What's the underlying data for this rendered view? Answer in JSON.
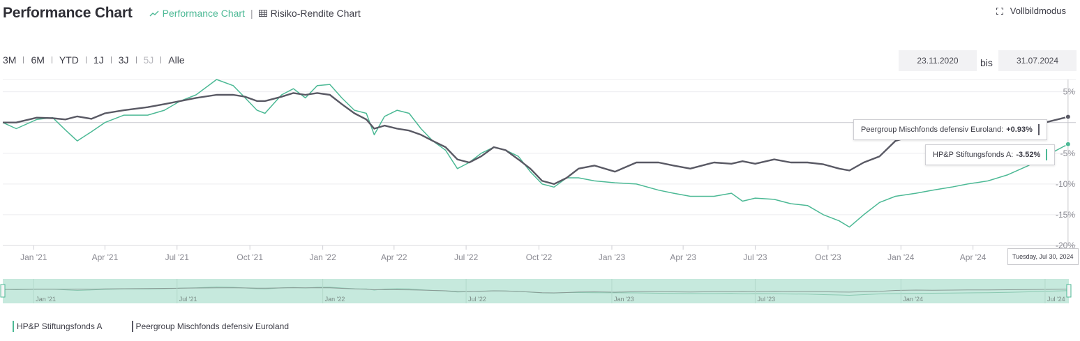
{
  "header": {
    "title": "Performance Chart",
    "tabs": [
      {
        "label": "Performance Chart",
        "icon": "line-chart-icon",
        "active": true
      },
      {
        "label": "Risiko-Rendite Chart",
        "icon": "table-icon",
        "active": false
      }
    ],
    "tab_separator": "|",
    "fullscreen_label": "Vollbildmodus"
  },
  "ranges": [
    {
      "label": "3M",
      "disabled": false
    },
    {
      "label": "6M",
      "disabled": false
    },
    {
      "label": "YTD",
      "disabled": false
    },
    {
      "label": "1J",
      "disabled": false
    },
    {
      "label": "3J",
      "disabled": false
    },
    {
      "label": "5J",
      "disabled": true
    },
    {
      "label": "Alle",
      "disabled": false
    }
  ],
  "date_range": {
    "from": "23.11.2020",
    "separator": "bis",
    "to": "31.07.2024"
  },
  "tooltips": {
    "peer_label": "Peergroup Mischfonds defensiv Euroland:",
    "peer_value": "+0.93%",
    "fund_label": "HP&P Stiftungsfonds A:",
    "fund_value": "-3.52%",
    "date": "Tuesday, Jul 30, 2024"
  },
  "legend": [
    {
      "name": "HP&P Stiftungsfonds A",
      "color": "#4cb995"
    },
    {
      "name": "Peergroup Mischfonds defensiv Euroland",
      "color": "#595964"
    }
  ],
  "colors": {
    "fund": "#4cb995",
    "peer": "#595964",
    "navigator_bg": "#c6e9dd",
    "accent": "#4cb995"
  },
  "chart_data": {
    "type": "line",
    "x_type": "date",
    "xlim": [
      "2020-11-23",
      "2024-07-31"
    ],
    "ylim": [
      -20,
      7
    ],
    "y_ticks": [
      5,
      0,
      -5,
      -10,
      -15,
      -20
    ],
    "y_tick_labels": [
      "5%",
      "",
      "-5%",
      "-10%",
      "-15%",
      "-20%"
    ],
    "x_ticks": [
      "2021-01-01",
      "2021-04-01",
      "2021-07-01",
      "2021-10-01",
      "2022-01-01",
      "2022-04-01",
      "2022-07-01",
      "2022-10-01",
      "2023-01-01",
      "2023-04-01",
      "2023-07-01",
      "2023-10-01",
      "2024-01-01",
      "2024-04-01"
    ],
    "x_tick_labels": [
      "Jan '21",
      "Apr '21",
      "Jul '21",
      "Oct '21",
      "Jan '22",
      "Apr '22",
      "Jul '22",
      "Oct '22",
      "Jan '23",
      "Apr '23",
      "Jul '23",
      "Oct '23",
      "Jan '24",
      "Apr '24"
    ],
    "navigator_ticks": [
      "2021-01-01",
      "2021-07-01",
      "2022-01-01",
      "2022-07-01",
      "2023-01-01",
      "2023-07-01",
      "2024-01-01",
      "2024-07-01"
    ],
    "navigator_tick_labels": [
      "Jan '21",
      "Jul '21",
      "Jan '22",
      "Jul '22",
      "Jan '23",
      "Jul '23",
      "Jan '24",
      "Jul '24"
    ],
    "grid": true,
    "legend_position": "bottom-left",
    "series": [
      {
        "name": "HP&P Stiftungsfonds A",
        "color": "#4cb995",
        "points": [
          [
            "2020-11-23",
            0.0
          ],
          [
            "2020-12-10",
            -1.0
          ],
          [
            "2021-01-05",
            0.5
          ],
          [
            "2021-01-25",
            0.8
          ],
          [
            "2021-02-10",
            -1.2
          ],
          [
            "2021-02-25",
            -3.0
          ],
          [
            "2021-03-15",
            -1.5
          ],
          [
            "2021-04-01",
            0.0
          ],
          [
            "2021-04-25",
            1.2
          ],
          [
            "2021-05-25",
            1.2
          ],
          [
            "2021-06-15",
            2.0
          ],
          [
            "2021-07-05",
            3.5
          ],
          [
            "2021-07-25",
            4.5
          ],
          [
            "2021-08-20",
            7.0
          ],
          [
            "2021-09-10",
            6.0
          ],
          [
            "2021-09-25",
            4.0
          ],
          [
            "2021-10-10",
            2.0
          ],
          [
            "2021-10-20",
            1.5
          ],
          [
            "2021-11-10",
            4.5
          ],
          [
            "2021-11-25",
            5.5
          ],
          [
            "2021-12-10",
            4.0
          ],
          [
            "2021-12-25",
            6.0
          ],
          [
            "2022-01-10",
            6.2
          ],
          [
            "2022-01-25",
            4.0
          ],
          [
            "2022-02-10",
            2.0
          ],
          [
            "2022-02-25",
            1.5
          ],
          [
            "2022-03-07",
            -2.0
          ],
          [
            "2022-03-20",
            1.0
          ],
          [
            "2022-04-05",
            2.0
          ],
          [
            "2022-04-20",
            1.5
          ],
          [
            "2022-05-05",
            -1.0
          ],
          [
            "2022-05-20",
            -3.0
          ],
          [
            "2022-06-05",
            -4.5
          ],
          [
            "2022-06-20",
            -7.5
          ],
          [
            "2022-07-05",
            -6.5
          ],
          [
            "2022-07-20",
            -5.0
          ],
          [
            "2022-08-05",
            -4.0
          ],
          [
            "2022-08-20",
            -4.5
          ],
          [
            "2022-09-05",
            -5.5
          ],
          [
            "2022-09-20",
            -8.0
          ],
          [
            "2022-10-05",
            -10.0
          ],
          [
            "2022-10-20",
            -10.5
          ],
          [
            "2022-11-05",
            -9.0
          ],
          [
            "2022-11-20",
            -9.0
          ],
          [
            "2022-12-10",
            -9.5
          ],
          [
            "2023-01-05",
            -9.8
          ],
          [
            "2023-02-01",
            -10.0
          ],
          [
            "2023-03-01",
            -11.0
          ],
          [
            "2023-03-20",
            -11.5
          ],
          [
            "2023-04-10",
            -12.0
          ],
          [
            "2023-05-10",
            -12.0
          ],
          [
            "2023-06-01",
            -11.5
          ],
          [
            "2023-06-15",
            -12.8
          ],
          [
            "2023-07-01",
            -12.3
          ],
          [
            "2023-07-25",
            -12.5
          ],
          [
            "2023-08-15",
            -13.2
          ],
          [
            "2023-09-05",
            -13.5
          ],
          [
            "2023-09-25",
            -15.0
          ],
          [
            "2023-10-15",
            -16.0
          ],
          [
            "2023-10-28",
            -17.0
          ],
          [
            "2023-11-15",
            -15.0
          ],
          [
            "2023-12-05",
            -13.0
          ],
          [
            "2023-12-25",
            -12.0
          ],
          [
            "2024-01-20",
            -11.5
          ],
          [
            "2024-02-10",
            -11.0
          ],
          [
            "2024-03-05",
            -10.5
          ],
          [
            "2024-03-25",
            -10.0
          ],
          [
            "2024-04-20",
            -9.5
          ],
          [
            "2024-05-15",
            -8.5
          ],
          [
            "2024-06-10",
            -7.0
          ],
          [
            "2024-07-01",
            -5.5
          ],
          [
            "2024-07-30",
            -3.52
          ]
        ]
      },
      {
        "name": "Peergroup Mischfonds defensiv Euroland",
        "color": "#595964",
        "points": [
          [
            "2020-11-23",
            0.0
          ],
          [
            "2020-12-10",
            0.0
          ],
          [
            "2021-01-05",
            0.8
          ],
          [
            "2021-01-25",
            0.7
          ],
          [
            "2021-02-10",
            0.5
          ],
          [
            "2021-02-25",
            1.0
          ],
          [
            "2021-03-15",
            0.6
          ],
          [
            "2021-04-01",
            1.5
          ],
          [
            "2021-04-25",
            2.0
          ],
          [
            "2021-05-25",
            2.5
          ],
          [
            "2021-06-15",
            3.0
          ],
          [
            "2021-07-05",
            3.5
          ],
          [
            "2021-07-25",
            4.0
          ],
          [
            "2021-08-20",
            4.5
          ],
          [
            "2021-09-10",
            4.5
          ],
          [
            "2021-09-25",
            4.2
          ],
          [
            "2021-10-10",
            3.5
          ],
          [
            "2021-10-20",
            3.5
          ],
          [
            "2021-11-10",
            4.2
          ],
          [
            "2021-11-25",
            4.8
          ],
          [
            "2021-12-10",
            4.5
          ],
          [
            "2021-12-25",
            4.8
          ],
          [
            "2022-01-10",
            4.5
          ],
          [
            "2022-01-25",
            3.0
          ],
          [
            "2022-02-10",
            1.5
          ],
          [
            "2022-02-25",
            0.5
          ],
          [
            "2022-03-07",
            -1.0
          ],
          [
            "2022-03-20",
            -0.5
          ],
          [
            "2022-04-05",
            -1.0
          ],
          [
            "2022-04-20",
            -1.3
          ],
          [
            "2022-05-05",
            -2.0
          ],
          [
            "2022-05-20",
            -3.0
          ],
          [
            "2022-06-05",
            -4.0
          ],
          [
            "2022-06-20",
            -6.0
          ],
          [
            "2022-07-05",
            -6.5
          ],
          [
            "2022-07-20",
            -5.5
          ],
          [
            "2022-08-05",
            -4.0
          ],
          [
            "2022-08-20",
            -4.5
          ],
          [
            "2022-09-05",
            -6.0
          ],
          [
            "2022-09-20",
            -7.5
          ],
          [
            "2022-10-05",
            -9.5
          ],
          [
            "2022-10-20",
            -10.0
          ],
          [
            "2022-11-05",
            -9.0
          ],
          [
            "2022-11-20",
            -7.5
          ],
          [
            "2022-12-10",
            -7.0
          ],
          [
            "2023-01-05",
            -8.0
          ],
          [
            "2023-02-01",
            -6.5
          ],
          [
            "2023-03-01",
            -6.5
          ],
          [
            "2023-03-20",
            -7.0
          ],
          [
            "2023-04-10",
            -7.5
          ],
          [
            "2023-05-10",
            -6.5
          ],
          [
            "2023-06-01",
            -6.7
          ],
          [
            "2023-06-15",
            -6.3
          ],
          [
            "2023-07-01",
            -6.7
          ],
          [
            "2023-07-25",
            -6.0
          ],
          [
            "2023-08-15",
            -6.5
          ],
          [
            "2023-09-05",
            -6.5
          ],
          [
            "2023-09-25",
            -6.8
          ],
          [
            "2023-10-15",
            -7.5
          ],
          [
            "2023-10-28",
            -7.8
          ],
          [
            "2023-11-15",
            -6.5
          ],
          [
            "2023-12-05",
            -5.5
          ],
          [
            "2023-12-25",
            -3.0
          ],
          [
            "2024-01-20",
            -2.0
          ],
          [
            "2024-02-10",
            -2.5
          ],
          [
            "2024-03-05",
            -2.0
          ],
          [
            "2024-03-25",
            -1.5
          ],
          [
            "2024-04-20",
            -1.5
          ],
          [
            "2024-05-15",
            -1.0
          ],
          [
            "2024-06-10",
            -0.5
          ],
          [
            "2024-07-01",
            0.0
          ],
          [
            "2024-07-30",
            0.93
          ]
        ]
      }
    ]
  }
}
